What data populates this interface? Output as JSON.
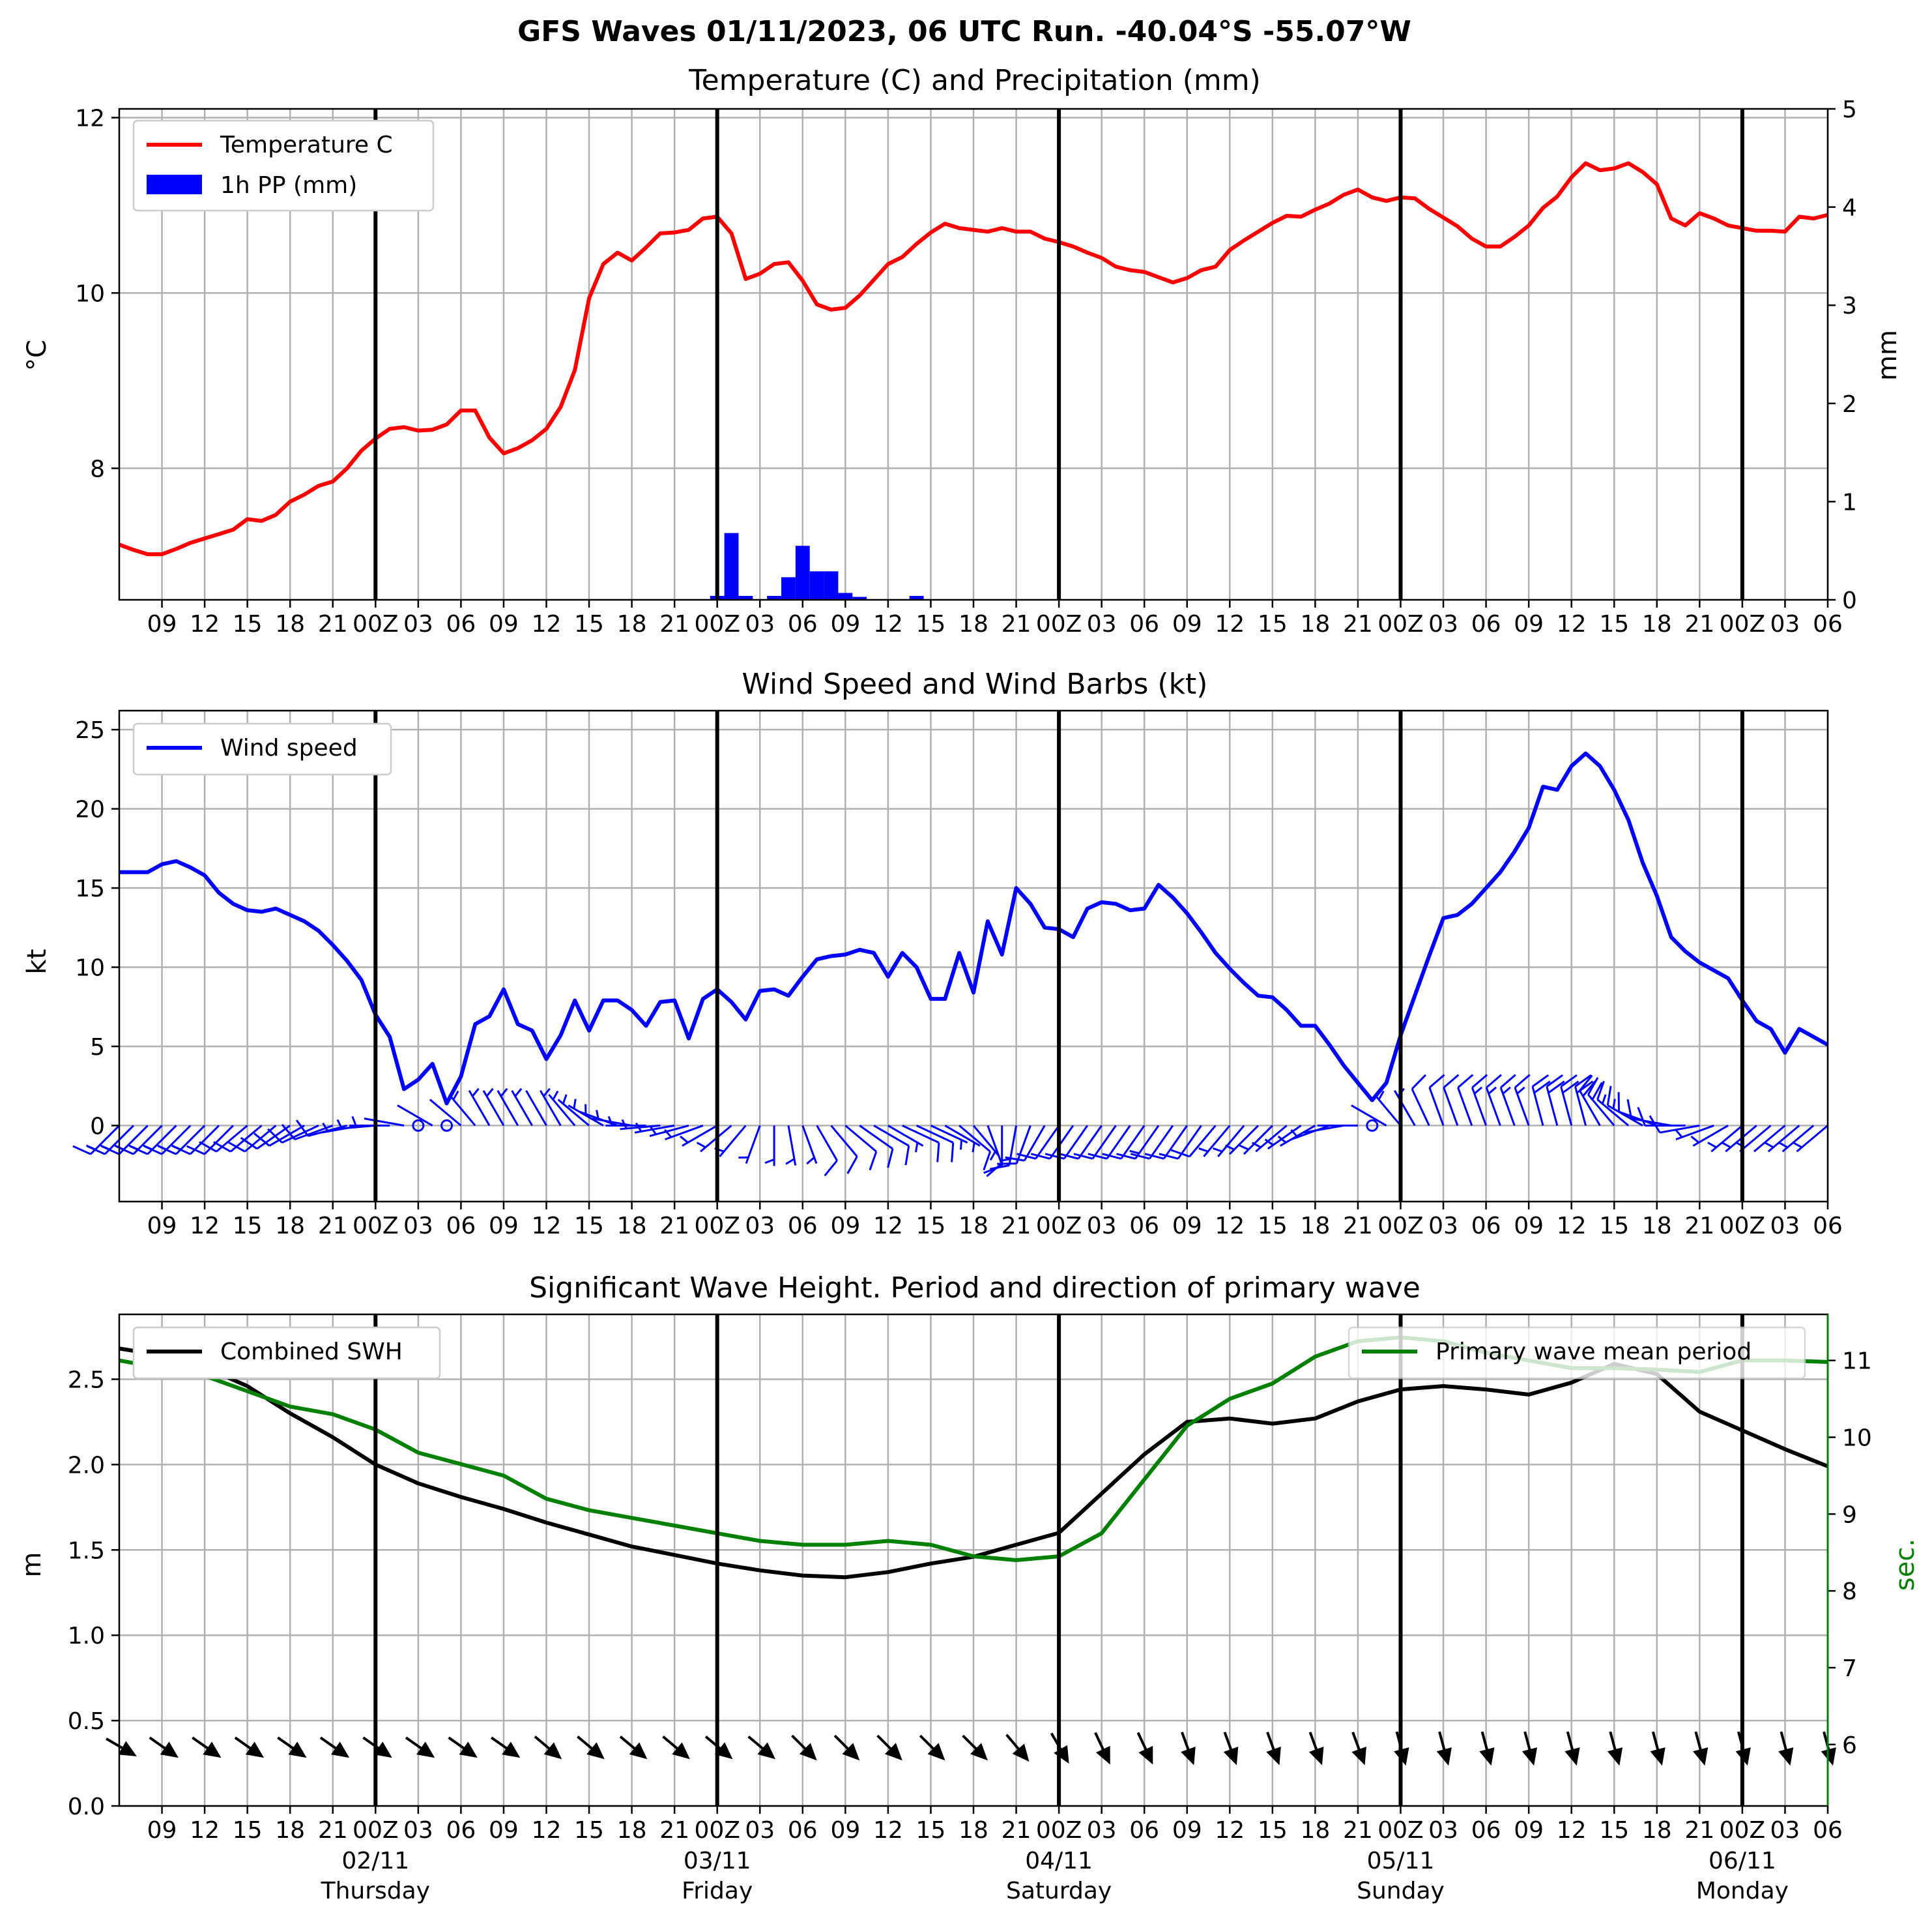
{
  "suptitle": "GFS Waves 01/11/2023, 06 UTC Run. -40.04°S -55.07°W",
  "colors": {
    "temperature": "#ff0000",
    "precip": "#0000ff",
    "wind": "#0000ff",
    "swh": "#000000",
    "period": "#008000",
    "axis": "#000000"
  },
  "hour_labels": [
    "09",
    "12",
    "15",
    "18",
    "21",
    "00Z",
    "03",
    "06",
    "09",
    "12",
    "15",
    "18",
    "21",
    "00Z",
    "03",
    "06",
    "09",
    "12",
    "15",
    "18",
    "21",
    "00Z",
    "03",
    "06",
    "09",
    "12",
    "15",
    "18",
    "21",
    "00Z",
    "03",
    "06",
    "09",
    "12",
    "15",
    "18",
    "21",
    "00Z",
    "03",
    "06"
  ],
  "day_labels": [
    {
      "date": "02/11",
      "day": "Thursday"
    },
    {
      "date": "03/11",
      "day": "Friday"
    },
    {
      "date": "04/11",
      "day": "Saturday"
    },
    {
      "date": "05/11",
      "day": "Sunday"
    },
    {
      "date": "06/11",
      "day": "Monday"
    }
  ],
  "chart_data": [
    {
      "type": "line",
      "title": "Temperature (C) and Precipitation (mm)",
      "ylabel": "°C",
      "y2label": "mm",
      "x_unit": "hours since 01/11 06Z",
      "xlim": [
        6,
        126
      ],
      "ylim": [
        6.5,
        12.1
      ],
      "y2lim": [
        0,
        5
      ],
      "yticks": [
        8,
        10,
        12
      ],
      "y2ticks": [
        0,
        1,
        2,
        3,
        4,
        5
      ],
      "legend": "top-left",
      "series": [
        {
          "name": "Temperature C",
          "kind": "line",
          "x": [
            6,
            7,
            8,
            9,
            10,
            11,
            12,
            13,
            14,
            15,
            16,
            17,
            18,
            19,
            20,
            21,
            22,
            23,
            24,
            25,
            26,
            27,
            28,
            29,
            30,
            31,
            32,
            33,
            34,
            35,
            36,
            37,
            38,
            39,
            40,
            41,
            42,
            43,
            44,
            45,
            46,
            47,
            48,
            49,
            50,
            51,
            52,
            53,
            54,
            55,
            56,
            57,
            58,
            59,
            60,
            61,
            62,
            63,
            64,
            65,
            66,
            67,
            68,
            69,
            70,
            71,
            72,
            73,
            74,
            75,
            76,
            77,
            78,
            79,
            80,
            81,
            82,
            83,
            84,
            85,
            86,
            87,
            88,
            89,
            90,
            91,
            92,
            93,
            94,
            95,
            96,
            97,
            98,
            99,
            100,
            101,
            102,
            103,
            104,
            105,
            106,
            107,
            108,
            109,
            110,
            111,
            112,
            113,
            114,
            115,
            116,
            117,
            118,
            119,
            120,
            121,
            122,
            123,
            124,
            125,
            126
          ],
          "y": [
            7.13,
            7.07,
            7.02,
            7.02,
            7.08,
            7.15,
            7.2,
            7.25,
            7.3,
            7.42,
            7.4,
            7.47,
            7.62,
            7.7,
            7.8,
            7.85,
            8.0,
            8.2,
            8.34,
            8.45,
            8.47,
            8.43,
            8.44,
            8.5,
            8.66,
            8.66,
            8.35,
            8.17,
            8.23,
            8.32,
            8.45,
            8.7,
            9.12,
            9.94,
            10.33,
            10.46,
            10.37,
            10.52,
            10.68,
            10.69,
            10.72,
            10.85,
            10.87,
            10.68,
            10.16,
            10.22,
            10.33,
            10.35,
            10.14,
            9.87,
            9.81,
            9.83,
            9.97,
            10.15,
            10.33,
            10.41,
            10.56,
            10.69,
            10.79,
            10.74,
            10.72,
            10.7,
            10.74,
            10.7,
            10.7,
            10.62,
            10.58,
            10.53,
            10.46,
            10.4,
            10.3,
            10.26,
            10.24,
            10.18,
            10.12,
            10.17,
            10.26,
            10.3,
            10.49,
            10.6,
            10.7,
            10.8,
            10.88,
            10.87,
            10.95,
            11.02,
            11.12,
            11.18,
            11.09,
            11.05,
            11.09,
            11.08,
            10.96,
            10.86,
            10.76,
            10.62,
            10.53,
            10.53,
            10.64,
            10.77,
            10.97,
            11.1,
            11.32,
            11.48,
            11.4,
            11.42,
            11.48,
            11.38,
            11.24,
            10.85,
            10.77,
            10.91,
            10.85,
            10.77,
            10.74,
            10.71,
            10.71,
            10.7,
            10.87,
            10.85,
            10.89
          ]
        },
        {
          "name": "1h PP (mm)",
          "kind": "bar",
          "axis": "y2",
          "x": [
            48,
            49,
            50,
            52,
            53,
            54,
            55,
            56,
            57,
            58,
            59,
            62
          ],
          "y": [
            0.04,
            0.68,
            0.04,
            0.04,
            0.23,
            0.55,
            0.29,
            0.29,
            0.07,
            0.03,
            0,
            0.04
          ]
        }
      ]
    },
    {
      "type": "line",
      "title": "Wind Speed and Wind Barbs (kt)",
      "ylabel": "kt",
      "x_unit": "hours since 01/11 06Z",
      "xlim": [
        6,
        126
      ],
      "ylim": [
        -4.8,
        26.2
      ],
      "yticks": [
        0,
        5,
        10,
        15,
        20,
        25
      ],
      "legend": "top-left",
      "barbs_note": "wind barbs drawn along y = 0 at each hour",
      "series": [
        {
          "name": "Wind speed",
          "x": [
            6,
            7,
            8,
            9,
            10,
            11,
            12,
            13,
            14,
            15,
            16,
            17,
            18,
            19,
            20,
            21,
            22,
            23,
            24,
            25,
            26,
            27,
            28,
            29,
            30,
            31,
            32,
            33,
            34,
            35,
            36,
            37,
            38,
            39,
            40,
            41,
            42,
            43,
            44,
            45,
            46,
            47,
            48,
            49,
            50,
            51,
            52,
            53,
            54,
            55,
            56,
            57,
            58,
            59,
            60,
            61,
            62,
            63,
            64,
            65,
            66,
            67,
            68,
            69,
            70,
            71,
            72,
            73,
            74,
            75,
            76,
            77,
            78,
            79,
            80,
            81,
            82,
            83,
            84,
            85,
            86,
            87,
            88,
            89,
            90,
            91,
            92,
            93,
            94,
            95,
            96,
            97,
            98,
            99,
            100,
            101,
            102,
            103,
            104,
            105,
            106,
            107,
            108,
            109,
            110,
            111,
            112,
            113,
            114,
            115,
            116,
            117,
            118,
            119,
            120,
            121,
            122,
            123,
            124,
            125,
            126
          ],
          "y": [
            16.0,
            16.0,
            16.0,
            16.5,
            16.7,
            16.3,
            15.8,
            14.7,
            14.0,
            13.6,
            13.5,
            13.7,
            13.3,
            12.9,
            12.3,
            11.4,
            10.4,
            9.2,
            7.0,
            5.6,
            2.3,
            2.9,
            3.9,
            1.4,
            3.1,
            6.4,
            6.9,
            8.6,
            6.4,
            6.0,
            4.2,
            5.7,
            7.9,
            6.0,
            7.9,
            7.9,
            7.3,
            6.3,
            7.8,
            7.9,
            5.5,
            8.0,
            8.6,
            7.8,
            6.7,
            8.5,
            8.6,
            8.2,
            9.4,
            10.5,
            10.7,
            10.8,
            11.1,
            10.9,
            9.4,
            10.9,
            10.0,
            8.0,
            8.0,
            10.9,
            8.4,
            12.9,
            10.8,
            15.0,
            14.0,
            12.5,
            12.4,
            11.9,
            13.7,
            14.1,
            14.0,
            13.6,
            13.7,
            15.2,
            14.4,
            13.4,
            12.2,
            10.9,
            9.9,
            9.0,
            8.2,
            8.1,
            7.3,
            6.3,
            6.3,
            5.1,
            3.8,
            2.7,
            1.6,
            2.7,
            5.7,
            8.2,
            10.7,
            13.1,
            13.3,
            14.0,
            15.0,
            16.0,
            17.3,
            18.8,
            21.4,
            21.2,
            22.7,
            23.5,
            22.7,
            21.2,
            19.3,
            16.6,
            14.5,
            11.9,
            11.0,
            10.3,
            9.8,
            9.3,
            7.9,
            6.6,
            6.1,
            4.6,
            6.1,
            5.6,
            5.1
          ]
        }
      ]
    },
    {
      "type": "line",
      "title": "Significant Wave Height. Period and direction of primary wave",
      "ylabel": "m",
      "y2label": "sec.",
      "x_unit": "hours since 01/11 06Z",
      "xlim": [
        6,
        126
      ],
      "ylim": [
        0,
        2.88
      ],
      "y2lim": [
        5.2,
        11.6
      ],
      "yticks": [
        0.0,
        0.5,
        1.0,
        1.5,
        2.0,
        2.5
      ],
      "y2ticks": [
        6,
        7,
        8,
        9,
        10,
        11
      ],
      "arrows_note": "primary wave direction arrows drawn near y = 0.35 m every 3 h",
      "series": [
        {
          "name": "Combined SWH",
          "legend": "top-left",
          "axis": "y",
          "x": [
            6,
            9,
            12,
            15,
            18,
            21,
            24,
            27,
            30,
            33,
            36,
            39,
            42,
            45,
            48,
            51,
            54,
            57,
            60,
            63,
            66,
            69,
            72,
            75,
            78,
            81,
            84,
            87,
            90,
            93,
            96,
            99,
            102,
            105,
            108,
            111,
            114,
            117,
            120,
            123,
            126
          ],
          "y": [
            2.68,
            2.64,
            2.57,
            2.46,
            2.3,
            2.16,
            2.0,
            1.89,
            1.81,
            1.74,
            1.66,
            1.59,
            1.52,
            1.47,
            1.42,
            1.38,
            1.35,
            1.34,
            1.37,
            1.42,
            1.46,
            1.53,
            1.6,
            1.83,
            2.06,
            2.25,
            2.27,
            2.24,
            2.27,
            2.37,
            2.44,
            2.46,
            2.44,
            2.41,
            2.48,
            2.59,
            2.53,
            2.31,
            2.2,
            2.09,
            1.99
          ]
        },
        {
          "name": "Primary wave mean period",
          "legend": "top-right",
          "axis": "y2",
          "x": [
            6,
            9,
            12,
            15,
            18,
            21,
            24,
            27,
            30,
            33,
            36,
            39,
            42,
            45,
            48,
            51,
            54,
            57,
            60,
            63,
            66,
            69,
            72,
            75,
            78,
            81,
            84,
            87,
            90,
            93,
            96,
            99,
            102,
            105,
            108,
            111,
            114,
            117,
            120,
            123,
            126
          ],
          "y": [
            11.0,
            10.9,
            10.8,
            10.6,
            10.4,
            10.3,
            10.1,
            9.8,
            9.65,
            9.5,
            9.2,
            9.05,
            8.95,
            8.85,
            8.75,
            8.65,
            8.6,
            8.6,
            8.65,
            8.6,
            8.45,
            8.4,
            8.45,
            8.75,
            9.45,
            10.15,
            10.5,
            10.7,
            11.05,
            11.25,
            11.3,
            11.25,
            11.1,
            11.0,
            10.9,
            10.9,
            10.88,
            10.85,
            11.0,
            11.0,
            10.98
          ]
        }
      ]
    }
  ],
  "wave_dir_deg": [
    300,
    305,
    305,
    305,
    305,
    305,
    305,
    305,
    305,
    305,
    310,
    310,
    310,
    310,
    310,
    310,
    315,
    315,
    315,
    315,
    315,
    320,
    330,
    335,
    335,
    340,
    340,
    340,
    340,
    340,
    345,
    345,
    345,
    345,
    345,
    345,
    345,
    345,
    345,
    345,
    345
  ],
  "wind_barb_dirs": [
    225,
    225,
    225,
    225,
    225,
    225,
    225,
    225,
    225,
    230,
    230,
    230,
    235,
    240,
    245,
    250,
    255,
    260,
    265,
    270,
    280,
    0,
    300,
    0,
    310,
    320,
    330,
    330,
    330,
    330,
    330,
    330,
    320,
    310,
    300,
    290,
    280,
    270,
    265,
    260,
    255,
    250,
    240,
    230,
    220,
    200,
    180,
    170,
    160,
    150,
    140,
    130,
    125,
    120,
    120,
    115,
    115,
    115,
    120,
    130,
    140,
    160,
    180,
    190,
    200,
    210,
    215,
    215,
    215,
    215,
    215,
    215,
    215,
    215,
    215,
    215,
    215,
    220,
    220,
    220,
    225,
    225,
    230,
    235,
    240,
    250,
    260,
    270,
    0,
    300,
    320,
    330,
    335,
    340,
    340,
    340,
    340,
    340,
    340,
    340,
    345,
    345,
    345,
    345,
    330,
    320,
    310,
    300,
    290,
    280,
    270,
    260,
    250,
    240,
    230,
    230,
    230,
    230,
    230,
    230,
    230
  ]
}
